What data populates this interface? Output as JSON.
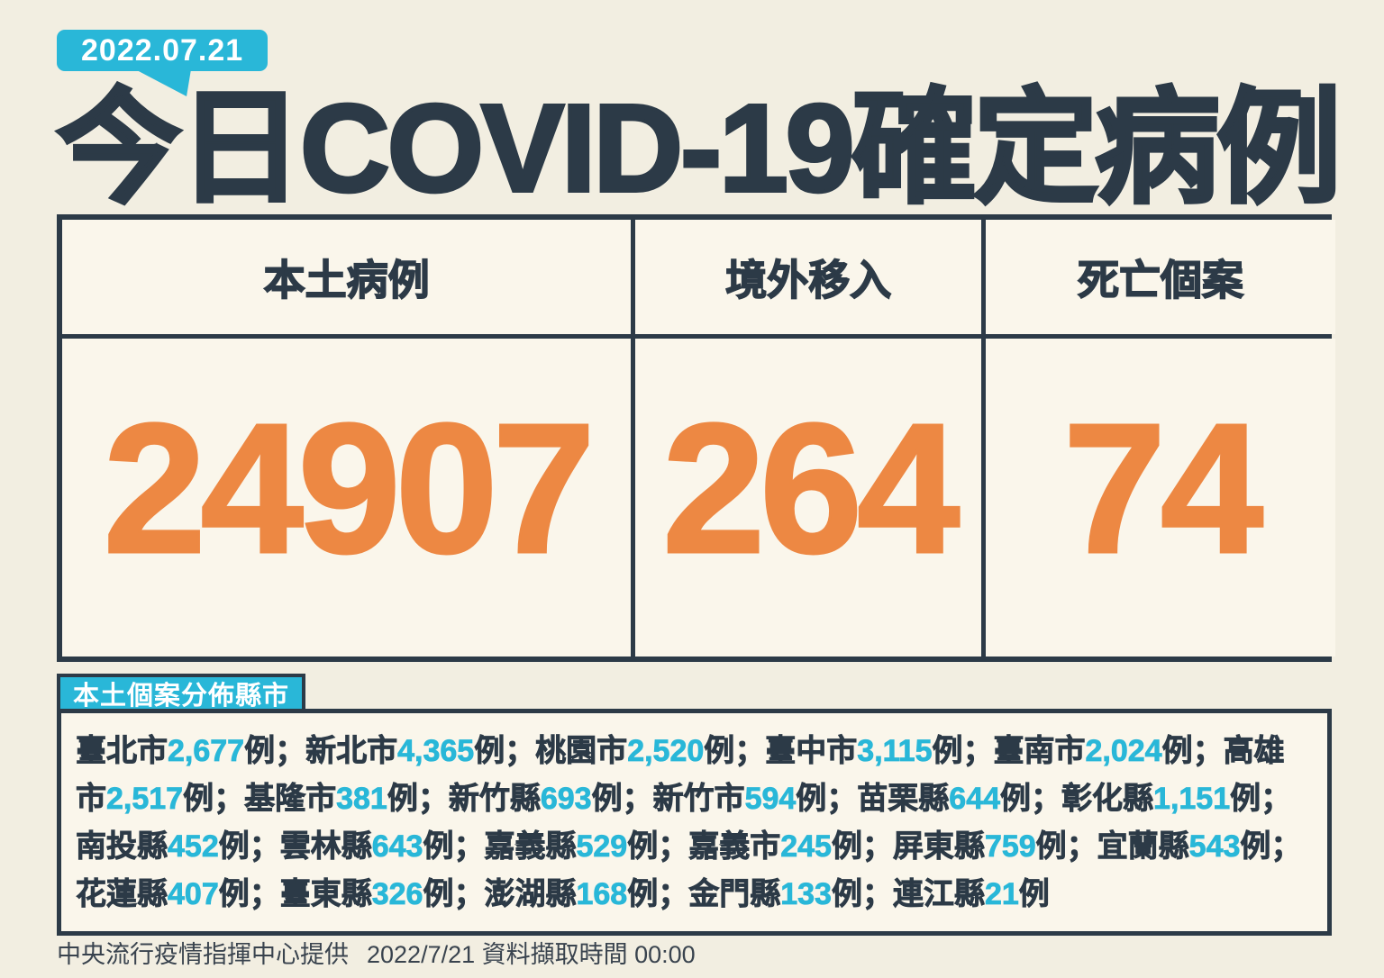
{
  "header": {
    "date_badge": "2022.07.21",
    "title": "今日COVID-19確定病例"
  },
  "summary_table": {
    "columns": [
      {
        "label": "本土病例",
        "value": "24907"
      },
      {
        "label": "境外移入",
        "value": "264"
      },
      {
        "label": "死亡個案",
        "value": "74"
      }
    ]
  },
  "distribution": {
    "badge_label": "本土個案分佈縣市",
    "suffix": "例",
    "separator": "；",
    "items": [
      {
        "region": "臺北市",
        "count": "2,677"
      },
      {
        "region": "新北市",
        "count": "4,365"
      },
      {
        "region": "桃園市",
        "count": "2,520"
      },
      {
        "region": "臺中市",
        "count": "3,115"
      },
      {
        "region": "臺南市",
        "count": "2,024"
      },
      {
        "region": "高雄市",
        "count": "2,517"
      },
      {
        "region": "基隆市",
        "count": "381"
      },
      {
        "region": "新竹縣",
        "count": "693"
      },
      {
        "region": "新竹市",
        "count": "594"
      },
      {
        "region": "苗栗縣",
        "count": "644"
      },
      {
        "region": "彰化縣",
        "count": "1,151"
      },
      {
        "region": "南投縣",
        "count": "452"
      },
      {
        "region": "雲林縣",
        "count": "643"
      },
      {
        "region": "嘉義縣",
        "count": "529"
      },
      {
        "region": "嘉義市",
        "count": "245"
      },
      {
        "region": "屏東縣",
        "count": "759"
      },
      {
        "region": "宜蘭縣",
        "count": "543"
      },
      {
        "region": "花蓮縣",
        "count": "407"
      },
      {
        "region": "臺東縣",
        "count": "326"
      },
      {
        "region": "澎湖縣",
        "count": "168"
      },
      {
        "region": "金門縣",
        "count": "133"
      },
      {
        "region": "連江縣",
        "count": "21"
      }
    ]
  },
  "footer": {
    "source": "中央流行疫情指揮中心提供",
    "retrieval": "2022/7/21 資料擷取時間 00:00"
  },
  "colors": {
    "background": "#F2EEE1",
    "panel": "#FAF6EB",
    "ink": "#2C3A47",
    "accent_orange": "#ED8843",
    "accent_cyan": "#29B7D8"
  }
}
